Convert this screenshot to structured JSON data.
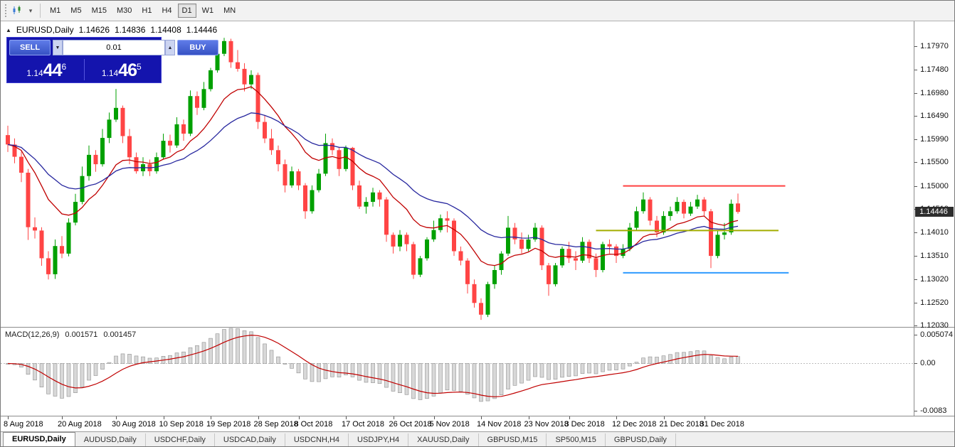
{
  "toolbar": {
    "timeframes": [
      "M1",
      "M5",
      "M15",
      "M30",
      "H1",
      "H4",
      "D1",
      "W1",
      "MN"
    ],
    "active_timeframe": "D1"
  },
  "icons": {
    "dropdown_caret": "▾",
    "spinner_up": "▲",
    "spinner_down": "▼",
    "title_marker": "▲"
  },
  "chart": {
    "symbol_period": "EURUSD,Daily",
    "open": "1.14626",
    "high": "1.14836",
    "low": "1.14408",
    "close": "1.14446"
  },
  "trade_panel": {
    "sell_label": "SELL",
    "buy_label": "BUY",
    "lot_value": "0.01",
    "bid": {
      "prefix": "1.14",
      "big": "44",
      "sup": "6"
    },
    "ask": {
      "prefix": "1.14",
      "big": "46",
      "sup": "5"
    }
  },
  "price_scale": [
    "1.17970",
    "1.17480",
    "1.16980",
    "1.16490",
    "1.15990",
    "1.15500",
    "1.15000",
    "1.14510",
    "1.14010",
    "1.13510",
    "1.13020",
    "1.12520",
    "1.12030"
  ],
  "price_badge": "1.14446",
  "macd_panel": {
    "name": "MACD(12,26,9)",
    "value_main": "0.001571",
    "value_signal": "0.001457",
    "scale": [
      {
        "label": "0.005074",
        "value": 0.005074
      },
      {
        "label": "0.00",
        "value": 0
      },
      {
        "label": "-0.0083",
        "value": -0.0083
      }
    ]
  },
  "tabs": [
    {
      "label": "EURUSD,Daily",
      "active": true
    },
    {
      "label": "AUDUSD,Daily",
      "active": false
    },
    {
      "label": "USDCHF,Daily",
      "active": false
    },
    {
      "label": "USDCAD,Daily",
      "active": false
    },
    {
      "label": "USDCNH,H4",
      "active": false
    },
    {
      "label": "USDJPY,H4",
      "active": false
    },
    {
      "label": "XAUUSD,Daily",
      "active": false
    },
    {
      "label": "GBPUSD,M15",
      "active": false
    },
    {
      "label": "SP500,M15",
      "active": false
    },
    {
      "label": "GBPUSD,Daily",
      "active": false
    }
  ],
  "chart_data": {
    "type": "candlestick",
    "symbol": "EURUSD",
    "period": "Daily",
    "title": "EURUSD,Daily",
    "ylim": [
      1.12,
      1.1838
    ],
    "price_axis_ticks": [
      1.1797,
      1.1748,
      1.1698,
      1.1649,
      1.1599,
      1.155,
      1.15,
      1.1451,
      1.1401,
      1.1351,
      1.1302,
      1.1252,
      1.1203
    ],
    "x_labels": [
      "8 Aug 2018",
      "20 Aug 2018",
      "30 Aug 2018",
      "10 Sep 2018",
      "19 Sep 2018",
      "28 Sep 2018",
      "8 Oct 2018",
      "17 Oct 2018",
      "26 Oct 2018",
      "5 Nov 2018",
      "14 Nov 2018",
      "23 Nov 2018",
      "3 Dec 2018",
      "12 Dec 2018",
      "21 Dec 2018",
      "31 Dec 2018"
    ],
    "x_label_indices": [
      0,
      8,
      16,
      23,
      30,
      37,
      43,
      50,
      57,
      63,
      70,
      77,
      83,
      90,
      97,
      103
    ],
    "colors": {
      "up": "#00A000",
      "down": "#FF4545",
      "ma_fast": "#C00000",
      "ma_slow": "#26269E",
      "macd_hist_fill": "#D8D8D8",
      "macd_hist_stroke": "#8F8F8F",
      "macd_signal": "#C00000"
    },
    "moving_averages": [
      {
        "period": 12,
        "method": "ema",
        "color": "#C00000"
      },
      {
        "period": 26,
        "method": "ema",
        "color": "#26269E"
      }
    ],
    "hlines": [
      {
        "price": 1.15,
        "color": "#FF4040",
        "from_index": 91,
        "to_index": 115
      },
      {
        "price": 1.1405,
        "color": "#A3AD00",
        "from_index": 87,
        "to_index": 114
      },
      {
        "price": 1.1315,
        "color": "#2F9BFF",
        "from_index": 91,
        "to_index": 115.5
      }
    ],
    "candles": [
      [
        1.1608,
        1.1628,
        1.1572,
        1.1588
      ],
      [
        1.1588,
        1.1601,
        1.1548,
        1.1562
      ],
      [
        1.1562,
        1.1573,
        1.1508,
        1.1528
      ],
      [
        1.1528,
        1.1536,
        1.1385,
        1.1412
      ],
      [
        1.1412,
        1.1433,
        1.1388,
        1.1405
      ],
      [
        1.1405,
        1.1412,
        1.133,
        1.1346
      ],
      [
        1.1346,
        1.1361,
        1.1301,
        1.1312
      ],
      [
        1.1312,
        1.1386,
        1.1302,
        1.1372
      ],
      [
        1.1372,
        1.1393,
        1.1346,
        1.1356
      ],
      [
        1.1356,
        1.1431,
        1.135,
        1.1422
      ],
      [
        1.1422,
        1.1483,
        1.1416,
        1.1466
      ],
      [
        1.1466,
        1.1541,
        1.1461,
        1.1521
      ],
      [
        1.1521,
        1.1586,
        1.1511,
        1.1566
      ],
      [
        1.1566,
        1.1576,
        1.153,
        1.1546
      ],
      [
        1.1546,
        1.1621,
        1.1541,
        1.1602
      ],
      [
        1.1602,
        1.1656,
        1.1591,
        1.1641
      ],
      [
        1.1641,
        1.1706,
        1.1636,
        1.1666
      ],
      [
        1.1666,
        1.1671,
        1.1591,
        1.1606
      ],
      [
        1.1606,
        1.1621,
        1.1546,
        1.1561
      ],
      [
        1.1561,
        1.1571,
        1.1526,
        1.1531
      ],
      [
        1.1531,
        1.1561,
        1.1521,
        1.1546
      ],
      [
        1.1546,
        1.1556,
        1.1521,
        1.1531
      ],
      [
        1.1531,
        1.1571,
        1.1526,
        1.1561
      ],
      [
        1.1561,
        1.1611,
        1.1556,
        1.1596
      ],
      [
        1.1596,
        1.1609,
        1.1571,
        1.1586
      ],
      [
        1.1586,
        1.1646,
        1.1581,
        1.1631
      ],
      [
        1.1631,
        1.1641,
        1.1596,
        1.1611
      ],
      [
        1.1611,
        1.1703,
        1.1606,
        1.1691
      ],
      [
        1.1691,
        1.1701,
        1.1651,
        1.1666
      ],
      [
        1.1666,
        1.1721,
        1.1661,
        1.1706
      ],
      [
        1.1706,
        1.1751,
        1.1701,
        1.1746
      ],
      [
        1.1746,
        1.1803,
        1.1741,
        1.1781
      ],
      [
        1.1781,
        1.1815,
        1.1776,
        1.1808
      ],
      [
        1.1808,
        1.1813,
        1.1751,
        1.1763
      ],
      [
        1.1763,
        1.1789,
        1.1743,
        1.1749
      ],
      [
        1.1749,
        1.1761,
        1.1701,
        1.1716
      ],
      [
        1.1716,
        1.1746,
        1.1706,
        1.1736
      ],
      [
        1.1736,
        1.1741,
        1.1621,
        1.1636
      ],
      [
        1.1636,
        1.1651,
        1.1591,
        1.1601
      ],
      [
        1.1601,
        1.1621,
        1.1566,
        1.1576
      ],
      [
        1.1576,
        1.1586,
        1.1531,
        1.1546
      ],
      [
        1.1546,
        1.1556,
        1.1486,
        1.1501
      ],
      [
        1.1501,
        1.1541,
        1.1496,
        1.1531
      ],
      [
        1.1531,
        1.1536,
        1.1491,
        1.1501
      ],
      [
        1.1501,
        1.1506,
        1.143,
        1.1446
      ],
      [
        1.1446,
        1.1501,
        1.1441,
        1.1491
      ],
      [
        1.1491,
        1.1536,
        1.1486,
        1.1526
      ],
      [
        1.1526,
        1.1611,
        1.1521,
        1.1591
      ],
      [
        1.1591,
        1.1601,
        1.1566,
        1.1576
      ],
      [
        1.1576,
        1.1581,
        1.1521,
        1.1536
      ],
      [
        1.1536,
        1.1586,
        1.1531,
        1.1581
      ],
      [
        1.1581,
        1.1583,
        1.1491,
        1.1501
      ],
      [
        1.1501,
        1.1511,
        1.1451,
        1.1456
      ],
      [
        1.1456,
        1.1476,
        1.1441,
        1.1466
      ],
      [
        1.1466,
        1.1496,
        1.1456,
        1.1486
      ],
      [
        1.1486,
        1.1491,
        1.1456,
        1.1471
      ],
      [
        1.1471,
        1.1476,
        1.1381,
        1.1396
      ],
      [
        1.1396,
        1.1401,
        1.1356,
        1.1371
      ],
      [
        1.1371,
        1.1406,
        1.1361,
        1.1396
      ],
      [
        1.1396,
        1.1401,
        1.1361,
        1.1376
      ],
      [
        1.1376,
        1.1381,
        1.1302,
        1.1311
      ],
      [
        1.1311,
        1.1351,
        1.1306,
        1.1346
      ],
      [
        1.1346,
        1.1391,
        1.1341,
        1.1386
      ],
      [
        1.1386,
        1.1426,
        1.1381,
        1.1406
      ],
      [
        1.1406,
        1.1439,
        1.1401,
        1.1431
      ],
      [
        1.1431,
        1.1446,
        1.1401,
        1.1426
      ],
      [
        1.1426,
        1.1431,
        1.1351,
        1.1361
      ],
      [
        1.1361,
        1.1371,
        1.1331,
        1.1341
      ],
      [
        1.1341,
        1.1346,
        1.1271,
        1.1291
      ],
      [
        1.1291,
        1.1301,
        1.1241,
        1.1251
      ],
      [
        1.1251,
        1.1261,
        1.1215,
        1.1226
      ],
      [
        1.1226,
        1.1296,
        1.1221,
        1.1291
      ],
      [
        1.1291,
        1.1331,
        1.1281,
        1.1321
      ],
      [
        1.1321,
        1.1361,
        1.1311,
        1.1356
      ],
      [
        1.1356,
        1.1436,
        1.1351,
        1.1411
      ],
      [
        1.1411,
        1.1421,
        1.1376,
        1.1386
      ],
      [
        1.1386,
        1.1401,
        1.1356,
        1.1366
      ],
      [
        1.1366,
        1.1396,
        1.1361,
        1.1386
      ],
      [
        1.1386,
        1.1421,
        1.1381,
        1.1411
      ],
      [
        1.1411,
        1.1416,
        1.1321,
        1.1331
      ],
      [
        1.1331,
        1.1336,
        1.1266,
        1.1291
      ],
      [
        1.1291,
        1.1336,
        1.1286,
        1.1331
      ],
      [
        1.1331,
        1.1371,
        1.1326,
        1.1366
      ],
      [
        1.1366,
        1.1381,
        1.1336,
        1.1346
      ],
      [
        1.1346,
        1.1361,
        1.1321,
        1.1341
      ],
      [
        1.1341,
        1.1391,
        1.1336,
        1.1381
      ],
      [
        1.1381,
        1.1386,
        1.1336,
        1.1346
      ],
      [
        1.1346,
        1.1356,
        1.1306,
        1.1321
      ],
      [
        1.1321,
        1.1381,
        1.1316,
        1.1376
      ],
      [
        1.1376,
        1.1386,
        1.1356,
        1.1371
      ],
      [
        1.1371,
        1.1376,
        1.1336,
        1.1351
      ],
      [
        1.1351,
        1.1376,
        1.1346,
        1.1366
      ],
      [
        1.1366,
        1.1421,
        1.1361,
        1.1411
      ],
      [
        1.1411,
        1.1456,
        1.1406,
        1.1446
      ],
      [
        1.1446,
        1.1486,
        1.1441,
        1.1471
      ],
      [
        1.1471,
        1.1476,
        1.1416,
        1.1426
      ],
      [
        1.1426,
        1.1436,
        1.1391,
        1.1401
      ],
      [
        1.1401,
        1.1446,
        1.1396,
        1.1436
      ],
      [
        1.1436,
        1.1456,
        1.1426,
        1.1446
      ],
      [
        1.1446,
        1.1476,
        1.1441,
        1.1466
      ],
      [
        1.1466,
        1.1471,
        1.1431,
        1.1441
      ],
      [
        1.1441,
        1.1466,
        1.1436,
        1.1456
      ],
      [
        1.1456,
        1.1481,
        1.1451,
        1.1471
      ],
      [
        1.1471,
        1.1476,
        1.1436,
        1.1446
      ],
      [
        1.1446,
        1.1451,
        1.1325,
        1.1351
      ],
      [
        1.1351,
        1.1406,
        1.1346,
        1.1396
      ],
      [
        1.1396,
        1.1421,
        1.1386,
        1.1401
      ],
      [
        1.1401,
        1.1471,
        1.1396,
        1.1462
      ],
      [
        1.14626,
        1.14836,
        1.14408,
        1.14446
      ]
    ],
    "macd": {
      "fast": 12,
      "slow": 26,
      "signal": 9,
      "ylim": [
        -0.0088,
        0.0058
      ],
      "current_main": 0.001571,
      "current_signal": 0.001457
    }
  }
}
